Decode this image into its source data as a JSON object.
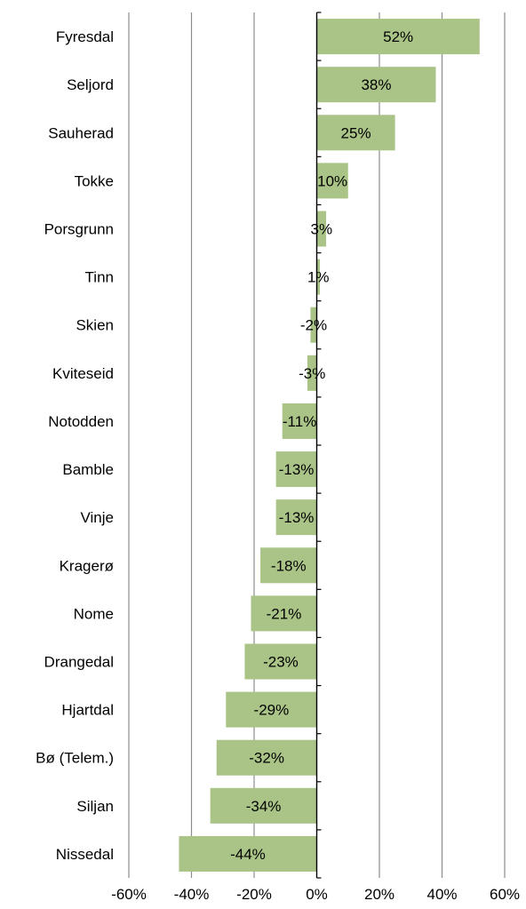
{
  "chart_data": {
    "type": "bar",
    "orientation": "horizontal",
    "categories": [
      "Fyresdal",
      "Seljord",
      "Sauherad",
      "Tokke",
      "Porsgrunn",
      "Tinn",
      "Skien",
      "Kviteseid",
      "Notodden",
      "Bamble",
      "Vinje",
      "Kragerø",
      "Nome",
      "Drangedal",
      "Hjartdal",
      "Bø (Telem.)",
      "Siljan",
      "Nissedal"
    ],
    "values": [
      52,
      38,
      25,
      10,
      3,
      1,
      -2,
      -3,
      -11,
      -13,
      -13,
      -18,
      -21,
      -23,
      -29,
      -32,
      -34,
      -44
    ],
    "data_labels": [
      "52%",
      "38%",
      "25%",
      "10%",
      "3%",
      "1%",
      "-2%",
      "-3%",
      "-11%",
      "-13%",
      "-13%",
      "-18%",
      "-21%",
      "-23%",
      "-29%",
      "-32%",
      "-34%",
      "-44%"
    ],
    "xlim": [
      -60,
      60
    ],
    "x_ticks": [
      -60,
      -40,
      -20,
      0,
      20,
      40,
      60
    ],
    "x_tick_labels": [
      "-60%",
      "-40%",
      "-20%",
      "0%",
      "20%",
      "40%",
      "60%"
    ],
    "grid": true,
    "legend": "none",
    "title": "",
    "xlabel": "",
    "ylabel": "",
    "colors": {
      "bar": "#a9c486",
      "gridline": "#8c8c8c",
      "axis": "#000000"
    }
  }
}
